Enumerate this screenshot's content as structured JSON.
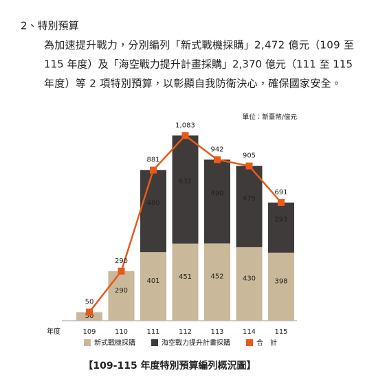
{
  "heading": "2、特別預算",
  "paragraph": [
    "為加速提升戰力，分別編列「新式戰機採購」2,472 億元（109 至",
    "115 年度）及「海空戰力提升計畫採購」2,370 億元（111 至 115",
    "年度）等 2 項特別預算，以彰顯自我防衛決心，確保國家安全。"
  ],
  "chart_data": {
    "type": "stacked-bar-line",
    "unit_label": "單位：新臺幣/億元",
    "x_label": "年度",
    "categories": [
      "109",
      "110",
      "111",
      "112",
      "113",
      "114",
      "115"
    ],
    "series": [
      {
        "name": "新式戰機採購",
        "color": "#c9b899",
        "values": [
          50,
          290,
          401,
          451,
          452,
          430,
          398
        ]
      },
      {
        "name": "海空戰力提升計畫採購",
        "color": "#3f3b3a",
        "values": [
          null,
          null,
          480,
          632,
          490,
          475,
          293
        ]
      },
      {
        "name": "合　計",
        "color": "#e8591a",
        "type": "line",
        "values": [
          50,
          290,
          881,
          1083,
          942,
          905,
          691
        ],
        "value_labels": [
          "50",
          "290",
          "881",
          "1,083",
          "942",
          "905",
          "691"
        ]
      }
    ],
    "caption": "【109-115 年度特別預算編列概況圖】"
  }
}
